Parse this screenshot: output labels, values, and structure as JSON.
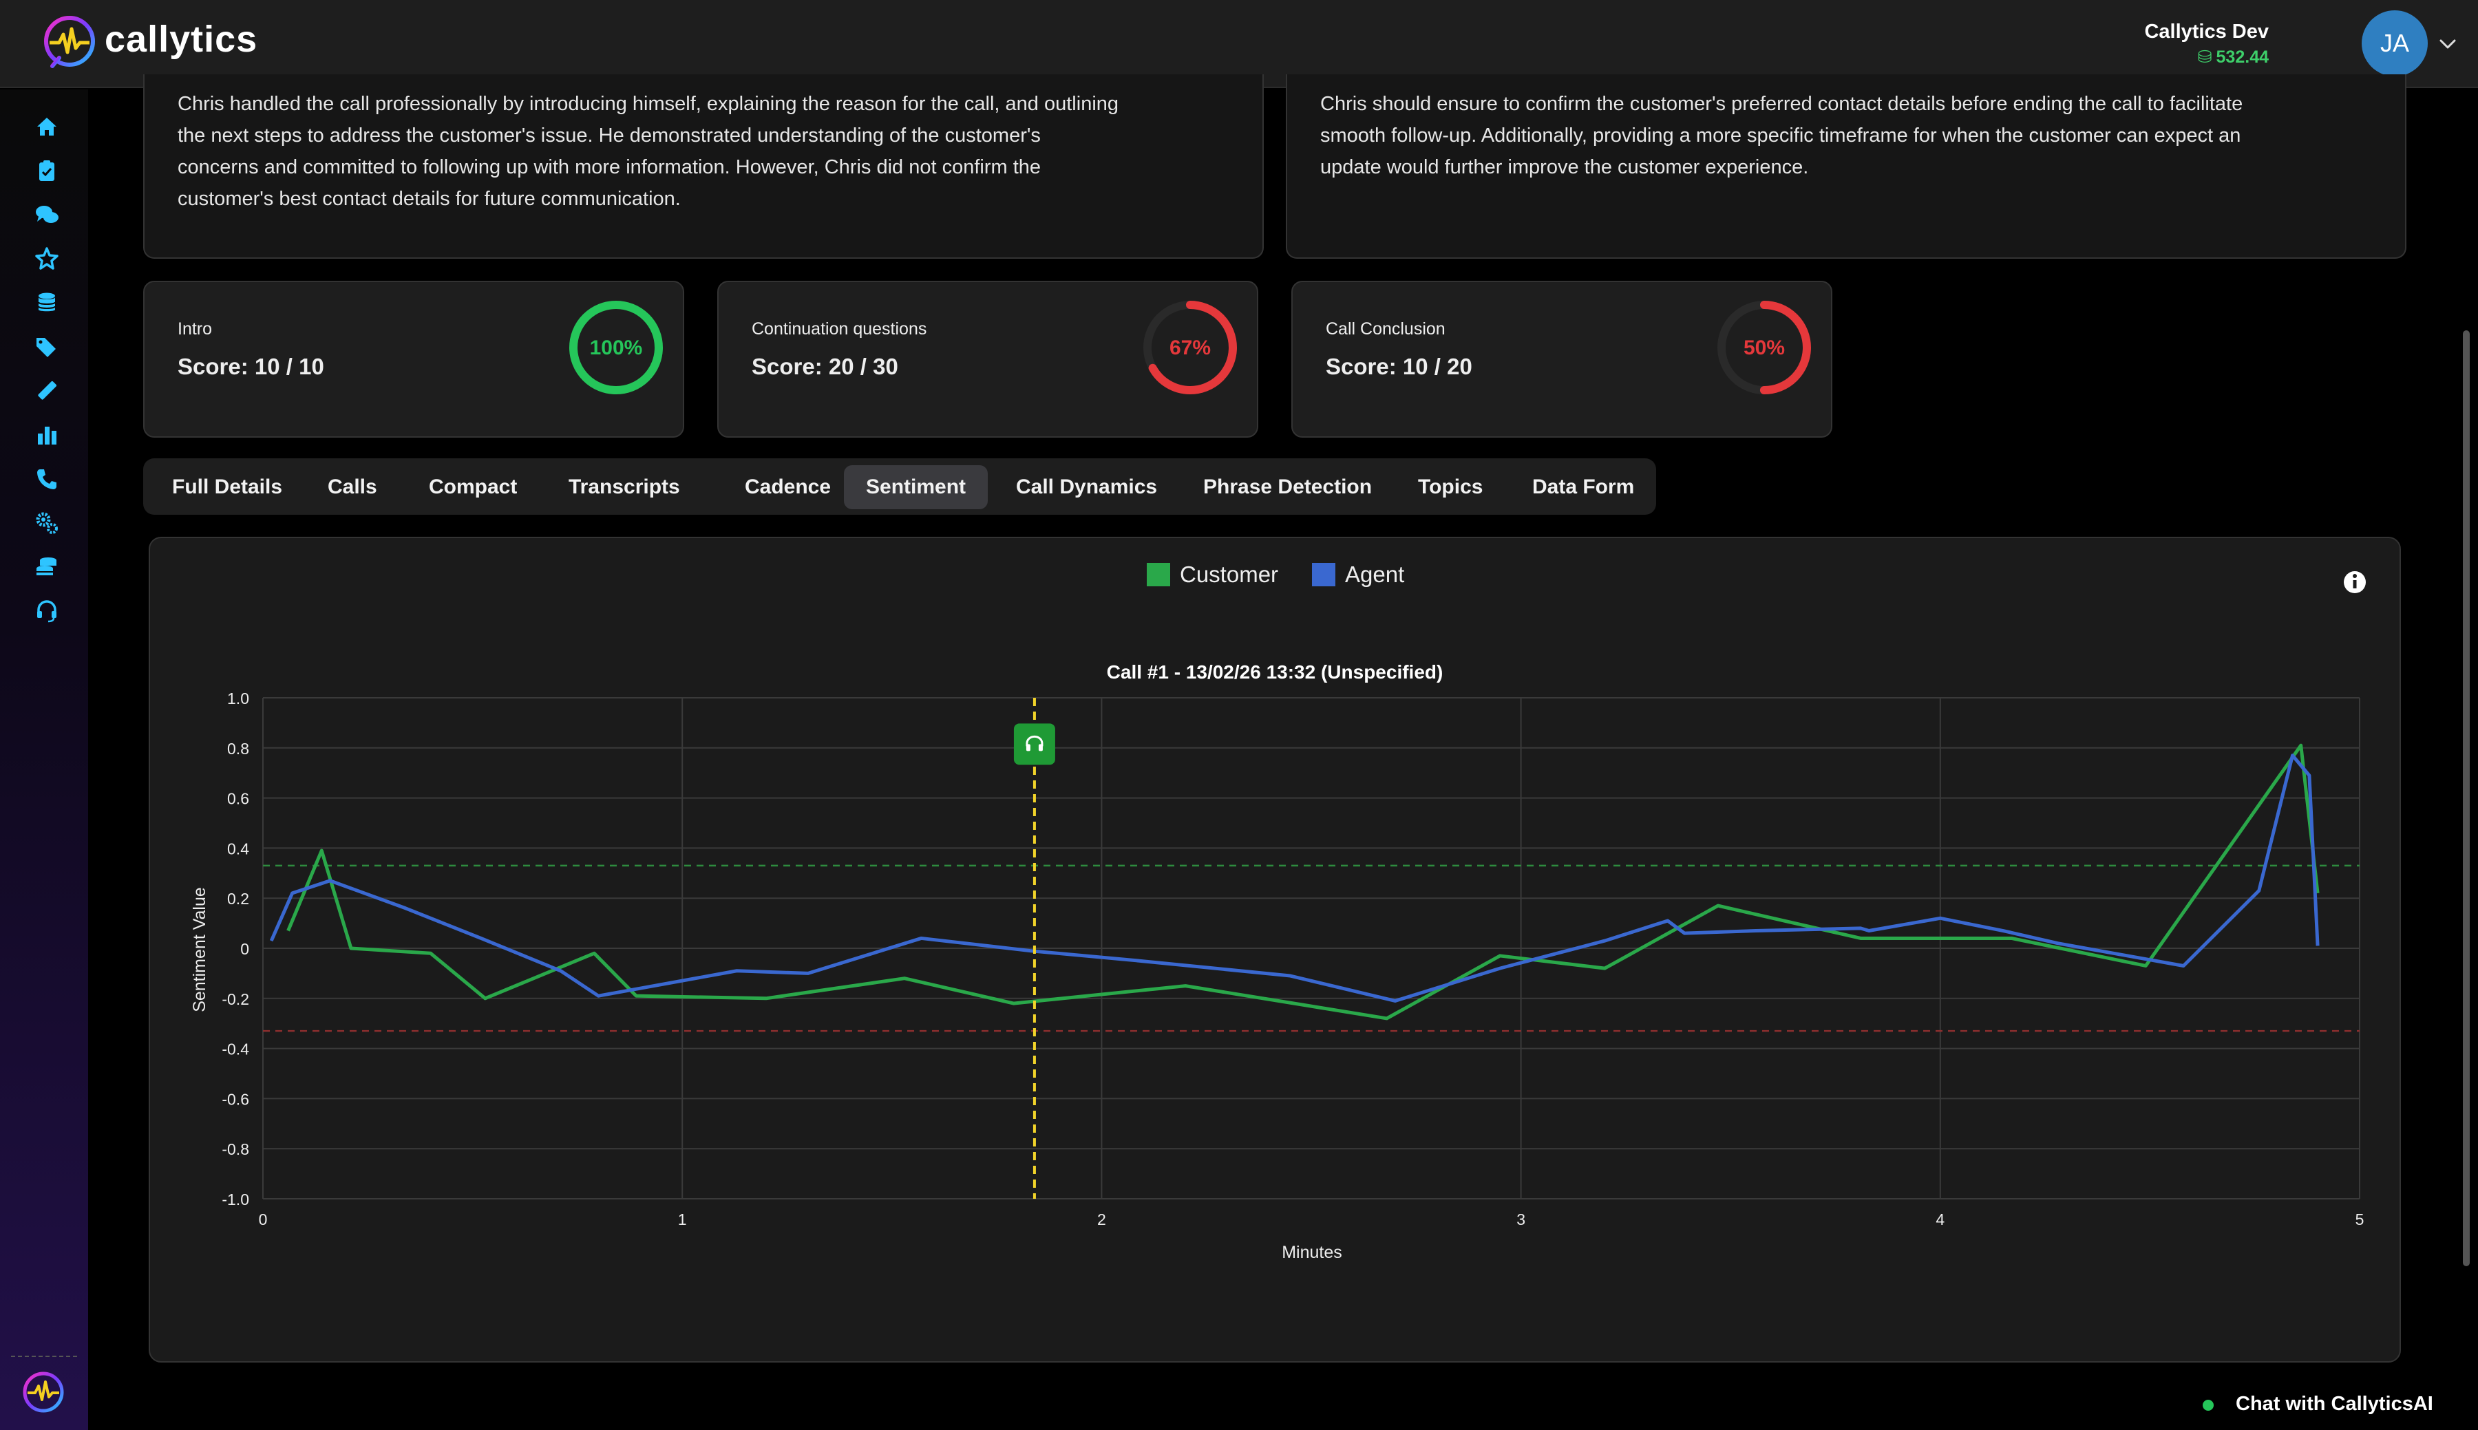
{
  "app": {
    "brand": "callytics"
  },
  "user": {
    "name": "Callytics Dev",
    "credits": "532.44",
    "initials": "JA"
  },
  "sidebar": {
    "icons": [
      "home-icon",
      "clipboard-check-icon",
      "chat-bubbles-icon",
      "star-icon",
      "database-icon",
      "tags-icon",
      "ruler-icon",
      "bar-chart-icon",
      "phone-icon",
      "settings-gears-icon",
      "coins-stack-icon",
      "headset-icon"
    ]
  },
  "summary": {
    "left": [
      "Chris handled the call professionally by introducing himself, explaining the reason for the call, and outlining",
      "the next steps to address the customer's issue. He demonstrated understanding of the customer's",
      "concerns and committed to following up with more information. However, Chris did not confirm the",
      "customer's best contact details for future communication."
    ],
    "right": [
      "Chris should ensure to confirm the customer's preferred contact details before ending the call to facilitate",
      "smooth follow-up. Additionally, providing a more specific timeframe for when the customer can expect an",
      "update would further improve the customer experience."
    ]
  },
  "scores": [
    {
      "title": "Intro",
      "score": "Score: 10 / 10",
      "percent_label": "100%",
      "fraction": 1.0,
      "color": "#25c65a"
    },
    {
      "title": "Continuation questions",
      "score": "Score: 20 / 30",
      "percent_label": "67%",
      "fraction": 0.67,
      "color": "#e5383b"
    },
    {
      "title": "Call Conclusion",
      "score": "Score: 10 / 20",
      "percent_label": "50%",
      "fraction": 0.5,
      "color": "#e5383b"
    }
  ],
  "tabs": [
    "Full Details",
    "Calls",
    "Compact",
    "Transcripts",
    "Cadence",
    "Sentiment",
    "Call Dynamics",
    "Phrase Detection",
    "Topics",
    "Data Form"
  ],
  "active_tab": "Sentiment",
  "chart_data": {
    "type": "line",
    "title": "Call #1 - 13/02/26 13:32 (Unspecified)",
    "xlabel": "Minutes",
    "ylabel": "Sentiment Value",
    "xlim": [
      0,
      5
    ],
    "ylim": [
      -1.0,
      1.0
    ],
    "x_ticks": [
      0,
      1,
      2,
      3,
      4,
      5
    ],
    "y_ticks": [
      1.0,
      0.8,
      0.6,
      0.4,
      0.2,
      0,
      -0.2,
      -0.4,
      -0.6,
      -0.8,
      -1.0
    ],
    "y_tick_labels": [
      "1.0",
      "0.8",
      "0.6",
      "0.4",
      "0.2",
      "0",
      "-0.2",
      "-0.4",
      "-0.6",
      "-0.8",
      "-1.0"
    ],
    "grid": true,
    "legend_position": "top-center",
    "thresholds": [
      {
        "y": 0.33,
        "color": "#2e8b3e"
      },
      {
        "y": -0.33,
        "color": "#8b2e2e"
      }
    ],
    "marker": {
      "x": 1.84,
      "icon": "headset-icon",
      "line_color": "#f2d42a"
    },
    "series": [
      {
        "name": "Customer",
        "color": "#2aa84a",
        "x": [
          0.06,
          0.14,
          0.21,
          0.4,
          0.53,
          0.79,
          0.89,
          1.2,
          1.53,
          1.79,
          2.2,
          2.68,
          2.95,
          3.2,
          3.47,
          3.81,
          4.17,
          4.49,
          4.86,
          4.9
        ],
        "y": [
          0.07,
          0.39,
          0.0,
          -0.02,
          -0.2,
          -0.02,
          -0.19,
          -0.2,
          -0.12,
          -0.22,
          -0.15,
          -0.28,
          -0.03,
          -0.08,
          0.17,
          0.04,
          0.04,
          -0.07,
          0.81,
          0.22
        ]
      },
      {
        "name": "Agent",
        "color": "#3a68d0",
        "x": [
          0.02,
          0.07,
          0.16,
          0.34,
          0.52,
          0.71,
          0.8,
          1.13,
          1.3,
          1.57,
          1.83,
          2.09,
          2.45,
          2.7,
          2.95,
          3.2,
          3.35,
          3.39,
          3.56,
          3.81,
          3.83,
          4.0,
          4.15,
          4.28,
          4.58,
          4.76,
          4.84,
          4.88,
          4.9
        ],
        "y": [
          0.03,
          0.22,
          0.27,
          0.16,
          0.04,
          -0.09,
          -0.19,
          -0.09,
          -0.1,
          0.04,
          -0.01,
          -0.05,
          -0.11,
          -0.21,
          -0.08,
          0.03,
          0.11,
          0.06,
          0.07,
          0.08,
          0.07,
          0.12,
          0.07,
          0.02,
          -0.07,
          0.23,
          0.77,
          0.69,
          0.01
        ]
      }
    ]
  },
  "footer": {
    "chat_label": "Chat with CallyticsAI"
  }
}
